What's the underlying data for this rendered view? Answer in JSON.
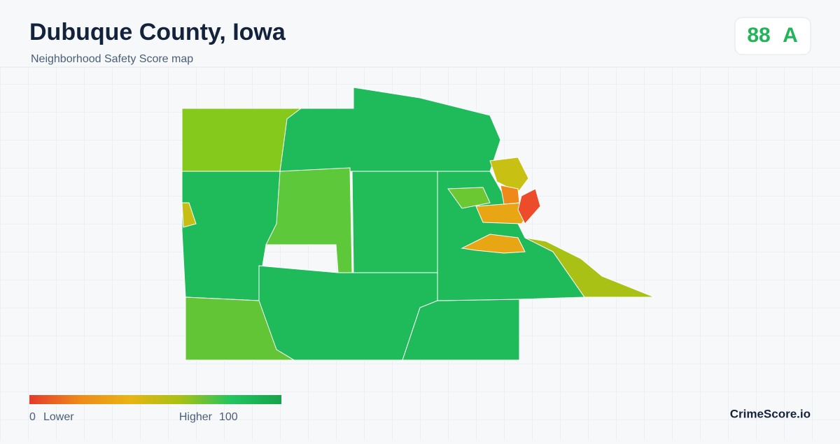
{
  "header": {
    "title": "Dubuque County, Iowa",
    "subtitle": "Neighborhood Safety Score map"
  },
  "score": {
    "value": 88,
    "grade": "A"
  },
  "legend": {
    "min": 0,
    "min_label": "Lower",
    "max_label": "Higher",
    "max": 100,
    "colors": [
      "#e53a2a",
      "#ef8a1a",
      "#e8b414",
      "#a8c114",
      "#22c55e",
      "#16a34a"
    ]
  },
  "brand": "CrimeScore.io"
}
